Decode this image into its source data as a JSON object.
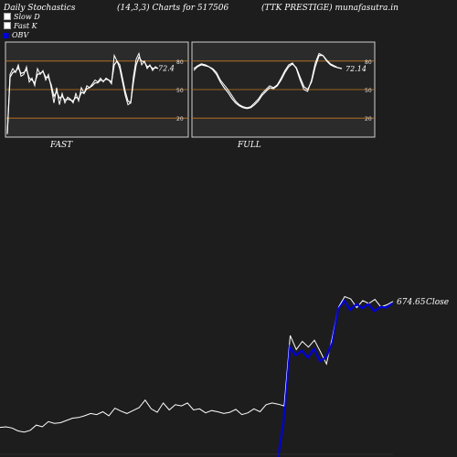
{
  "header": {
    "left": "Daily Stochastics",
    "middle": "(14,3,3) Charts for 517506",
    "right": "(TTK PRESTIGE) munafasutra.in"
  },
  "legend": [
    {
      "label": "Slow  D",
      "color": "#ffffff"
    },
    {
      "label": "Fast K",
      "color": "#ffffff"
    },
    {
      "label": "OBV",
      "color": "#0000dd"
    }
  ],
  "colors": {
    "background": "#1d1d1d",
    "panel": "#2b2b2b",
    "level_line": "#c8781e",
    "price_line": "#ffffff",
    "obv_line": "#0000dd"
  },
  "chart_data": [
    {
      "type": "line",
      "panel": "FAST",
      "label": "FAST",
      "ylim": [
        0,
        100
      ],
      "levels": [
        80,
        50,
        20
      ],
      "level_labels": [
        "80",
        "50",
        "20"
      ],
      "last_value_label": "72.4",
      "series": [
        {
          "values": [
            3,
            66,
            72,
            68,
            76,
            64,
            66,
            74,
            58,
            62,
            54,
            72,
            66,
            70,
            60,
            66,
            52,
            36,
            52,
            34,
            46,
            36,
            42,
            40,
            36,
            46,
            38,
            52,
            46,
            54,
            52,
            56,
            60,
            58,
            62,
            58,
            62,
            60,
            56,
            86,
            80,
            72,
            58,
            44,
            34,
            36,
            64,
            82,
            88,
            76,
            80,
            72,
            76,
            70,
            74,
            72
          ]
        },
        {
          "values": [
            4,
            63,
            68,
            69,
            73,
            67,
            68,
            71,
            62,
            60,
            57,
            66,
            67,
            69,
            63,
            63,
            55,
            43,
            48,
            41,
            43,
            39,
            40,
            39,
            38,
            42,
            40,
            47,
            46,
            51,
            52,
            54,
            57,
            57,
            60,
            59,
            61,
            60,
            58,
            76,
            80,
            76,
            62,
            48,
            38,
            36,
            58,
            76,
            84,
            80,
            79,
            74,
            75,
            72,
            73,
            72.4
          ]
        }
      ]
    },
    {
      "type": "line",
      "panel": "FULL",
      "label": "FULL",
      "ylim": [
        0,
        100
      ],
      "levels": [
        80,
        50,
        20
      ],
      "level_labels": [
        "80",
        "50",
        "20"
      ],
      "last_value_label": "72.14",
      "series": [
        {
          "values": [
            70,
            74,
            76,
            75,
            74,
            72,
            68,
            60,
            55,
            50,
            44,
            38,
            34,
            32,
            31,
            32,
            36,
            40,
            46,
            50,
            54,
            52,
            55,
            62,
            70,
            76,
            78,
            72,
            60,
            50,
            48,
            60,
            78,
            88,
            86,
            80,
            76,
            74,
            73,
            72.14
          ]
        },
        {
          "values": [
            72,
            75,
            77,
            76,
            74,
            71,
            66,
            58,
            52,
            47,
            41,
            36,
            33,
            31,
            30,
            31,
            34,
            38,
            44,
            48,
            52,
            51,
            54,
            60,
            68,
            74,
            77,
            73,
            63,
            53,
            50,
            58,
            74,
            86,
            86,
            81,
            77,
            75,
            73,
            72.14
          ]
        }
      ]
    },
    {
      "type": "line",
      "panel": "price",
      "last_value_label": "674.65",
      "close_label": "Close",
      "series": [
        {
          "values": [
            458,
            459,
            457,
            452,
            450,
            453,
            462,
            459,
            468,
            465,
            466,
            470,
            474,
            475,
            478,
            482,
            480,
            485,
            478,
            491,
            486,
            482,
            487,
            492,
            505,
            490,
            484,
            500,
            488,
            497,
            495,
            500,
            488,
            490,
            483,
            487,
            485,
            482,
            484,
            489,
            480,
            483,
            490,
            485,
            497,
            500,
            498,
            495,
            616,
            592,
            606,
            596,
            608,
            588,
            567,
            614,
            665,
            683,
            679,
            664,
            676,
            671,
            678,
            665,
            669,
            674.65
          ]
        },
        {
          "values": [
            null,
            null,
            null,
            null,
            null,
            null,
            null,
            null,
            null,
            null,
            null,
            null,
            null,
            null,
            null,
            null,
            null,
            null,
            null,
            null,
            null,
            null,
            null,
            null,
            null,
            null,
            null,
            null,
            null,
            null,
            null,
            null,
            null,
            null,
            null,
            null,
            null,
            null,
            null,
            null,
            380,
            381,
            382,
            381,
            380,
            383,
            400,
            470,
            596,
            582,
            590,
            578,
            593,
            572,
            579,
            604,
            662,
            676,
            660,
            670,
            663,
            670,
            658,
            665,
            664,
            672
          ]
        }
      ]
    }
  ]
}
